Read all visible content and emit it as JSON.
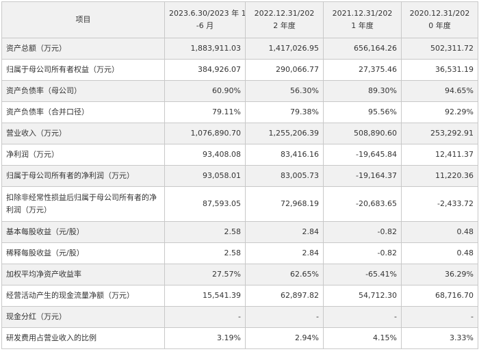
{
  "header": {
    "item": "项目",
    "cols": [
      {
        "l1": "2023.6.30/2023 年 1",
        "l2": "-6 月"
      },
      {
        "l1": "2022.12.31/202",
        "l2": "2 年度"
      },
      {
        "l1": "2021.12.31/202",
        "l2": "1 年度"
      },
      {
        "l1": "2020.12.31/202",
        "l2": "0 年度"
      }
    ]
  },
  "rows": [
    {
      "label": "资产总额（万元）",
      "values": [
        "1,883,911.03",
        "1,417,026.95",
        "656,164.26",
        "502,311.72"
      ]
    },
    {
      "label": "归属于母公司所有者权益（万元）",
      "values": [
        "384,926.07",
        "290,066.77",
        "27,375.46",
        "36,531.19"
      ]
    },
    {
      "label": "资产负债率（母公司）",
      "values": [
        "60.90%",
        "56.30%",
        "89.30%",
        "94.65%"
      ]
    },
    {
      "label": "资产负债率（合并口径）",
      "values": [
        "79.11%",
        "79.38%",
        "95.56%",
        "92.29%"
      ]
    },
    {
      "label": "营业收入（万元）",
      "values": [
        "1,076,890.70",
        "1,255,206.39",
        "508,890.60",
        "253,292.91"
      ]
    },
    {
      "label": "净利润（万元）",
      "values": [
        "93,408.08",
        "83,416.16",
        "-19,645.84",
        "12,411.37"
      ]
    },
    {
      "label": "归属于母公司所有者的净利润（万元）",
      "values": [
        "93,058.01",
        "83,005.73",
        "-19,164.37",
        "11,220.36"
      ]
    },
    {
      "label": "扣除非经常性损益后归属于母公司所有者的净利润（万元）",
      "values": [
        "87,593.05",
        "72,968.19",
        "-20,683.65",
        "-2,433.72"
      ]
    },
    {
      "label": "基本每股收益（元/股）",
      "values": [
        "2.58",
        "2.84",
        "-0.82",
        "0.48"
      ]
    },
    {
      "label": "稀释每股收益（元/股）",
      "values": [
        "2.58",
        "2.84",
        "-0.82",
        "0.48"
      ]
    },
    {
      "label": "加权平均净资产收益率",
      "values": [
        "27.57%",
        "62.65%",
        "-65.41%",
        "36.29%"
      ]
    },
    {
      "label": "经营活动产生的现金流量净额（万元）",
      "values": [
        "15,541.39",
        "62,897.82",
        "54,712.30",
        "68,716.70"
      ]
    },
    {
      "label": "现金分红（万元）",
      "values": [
        "-",
        "-",
        "-",
        "-"
      ]
    },
    {
      "label": "研发费用占营业收入的比例",
      "values": [
        "3.19%",
        "2.94%",
        "4.15%",
        "3.33%"
      ]
    }
  ]
}
